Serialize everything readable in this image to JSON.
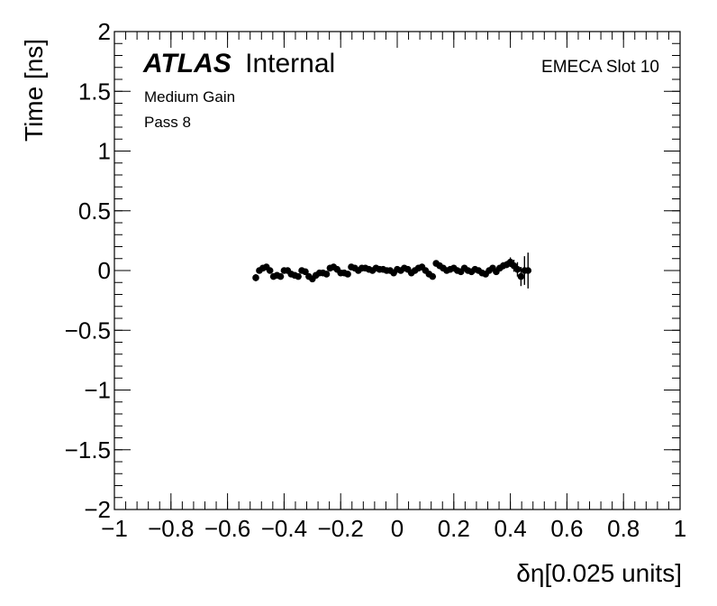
{
  "chart_data": {
    "type": "scatter",
    "xlabel": "δη[0.025 units]",
    "ylabel": "Time [ns]",
    "xlim": [
      -1,
      1
    ],
    "ylim": [
      -2,
      2
    ],
    "xticks": [
      "−1",
      "−0.8",
      "−0.6",
      "−0.4",
      "−0.2",
      "0",
      "0.2",
      "0.4",
      "0.6",
      "0.8",
      "1"
    ],
    "xtick_values": [
      -1,
      -0.8,
      -0.6,
      -0.4,
      -0.2,
      0,
      0.2,
      0.4,
      0.6,
      0.8,
      1
    ],
    "yticks": [
      "2",
      "1.5",
      "1",
      "0.5",
      "0",
      "−0.5",
      "−1",
      "−1.5",
      "−2"
    ],
    "ytick_values": [
      2,
      1.5,
      1,
      0.5,
      0,
      -0.5,
      -1,
      -1.5,
      -2
    ],
    "annotations": {
      "atlas": "ATLAS",
      "internal": "Internal",
      "gain": "Medium Gain",
      "pass": "Pass 8",
      "slot": "EMECA Slot 10"
    },
    "grid": false,
    "points": {
      "x": [
        -0.5,
        -0.4875,
        -0.475,
        -0.4625,
        -0.45,
        -0.4375,
        -0.425,
        -0.4125,
        -0.4,
        -0.3875,
        -0.375,
        -0.3625,
        -0.35,
        -0.3375,
        -0.325,
        -0.3125,
        -0.3,
        -0.2875,
        -0.275,
        -0.2625,
        -0.25,
        -0.2375,
        -0.225,
        -0.2125,
        -0.2,
        -0.1875,
        -0.175,
        -0.1625,
        -0.15,
        -0.1375,
        -0.125,
        -0.1125,
        -0.1,
        -0.0875,
        -0.075,
        -0.0625,
        -0.05,
        -0.0375,
        -0.025,
        -0.0125,
        0,
        0.0125,
        0.025,
        0.0375,
        0.05,
        0.0625,
        0.075,
        0.0875,
        0.1,
        0.1125,
        0.125,
        0.1375,
        0.15,
        0.1625,
        0.175,
        0.1875,
        0.2,
        0.2125,
        0.225,
        0.2375,
        0.25,
        0.2625,
        0.275,
        0.2875,
        0.3,
        0.3125,
        0.325,
        0.3375,
        0.35,
        0.3625,
        0.375,
        0.3875,
        0.4,
        0.4125,
        0.425,
        0.4375,
        0.45,
        0.4625
      ],
      "y": [
        -0.06,
        0.0,
        0.02,
        0.03,
        0.0,
        -0.05,
        -0.04,
        -0.05,
        0.0,
        0.0,
        -0.03,
        -0.04,
        -0.05,
        0.0,
        -0.01,
        -0.05,
        -0.07,
        -0.04,
        -0.02,
        -0.02,
        -0.03,
        0.02,
        0.03,
        0.01,
        -0.02,
        -0.02,
        -0.03,
        0.03,
        0.02,
        0.0,
        0.02,
        0.02,
        0.01,
        0.0,
        0.02,
        0.01,
        0.01,
        0.0,
        0.0,
        -0.02,
        0.01,
        0.0,
        0.02,
        0.01,
        -0.02,
        0.0,
        0.02,
        0.03,
        0.0,
        -0.03,
        -0.05,
        0.06,
        0.04,
        0.02,
        0.0,
        0.01,
        0.02,
        0.0,
        -0.01,
        0.02,
        0.0,
        -0.01,
        0.01,
        0.0,
        -0.02,
        -0.03,
        0.0,
        0.02,
        -0.01,
        0.02,
        0.04,
        0.05,
        0.07,
        0.04,
        0.01,
        -0.05,
        0.0,
        0.0
      ],
      "yerr": [
        0.03,
        0.02,
        0.02,
        0.02,
        0.02,
        0.02,
        0.02,
        0.02,
        0.02,
        0.02,
        0.02,
        0.02,
        0.02,
        0.02,
        0.02,
        0.02,
        0.02,
        0.02,
        0.02,
        0.02,
        0.02,
        0.02,
        0.02,
        0.02,
        0.02,
        0.02,
        0.02,
        0.02,
        0.02,
        0.02,
        0.02,
        0.02,
        0.02,
        0.02,
        0.02,
        0.02,
        0.02,
        0.02,
        0.02,
        0.02,
        0.02,
        0.02,
        0.02,
        0.02,
        0.02,
        0.02,
        0.02,
        0.02,
        0.02,
        0.02,
        0.02,
        0.02,
        0.02,
        0.02,
        0.02,
        0.02,
        0.02,
        0.02,
        0.02,
        0.02,
        0.02,
        0.02,
        0.02,
        0.02,
        0.02,
        0.02,
        0.02,
        0.02,
        0.02,
        0.02,
        0.03,
        0.03,
        0.04,
        0.05,
        0.06,
        0.08,
        0.12,
        0.15
      ]
    }
  }
}
